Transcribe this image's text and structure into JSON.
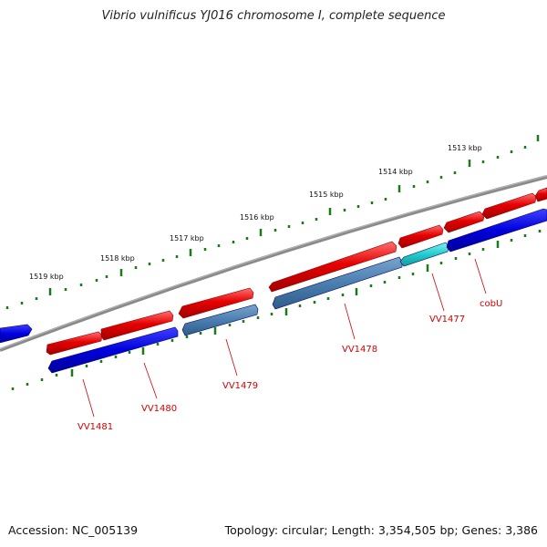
{
  "title": "Vibrio vulnificus YJ016 chromosome I, complete sequence",
  "footer": {
    "accession": "Accession: NC_005139",
    "summary": "Topology: circular; Length: 3,354,505 bp; Genes: 3,386"
  },
  "colors": {
    "forward_gene": "#e60000",
    "reverse_gene": "#0000dd",
    "reverse_gene_alt": "#4a7fb0",
    "highlight_gene": "#22cccc",
    "backbone": "#808080",
    "tick": "#1a7a1a",
    "label": "#d40000"
  },
  "kbp_labels": [
    "1519 kbp",
    "1518 kbp",
    "1517 kbp",
    "1516 kbp",
    "1515 kbp",
    "1514 kbp",
    "1513 kbp"
  ],
  "gene_labels": [
    "VV1481",
    "VV1480",
    "VV1479",
    "VV1478",
    "VV1477",
    "cobU"
  ]
}
